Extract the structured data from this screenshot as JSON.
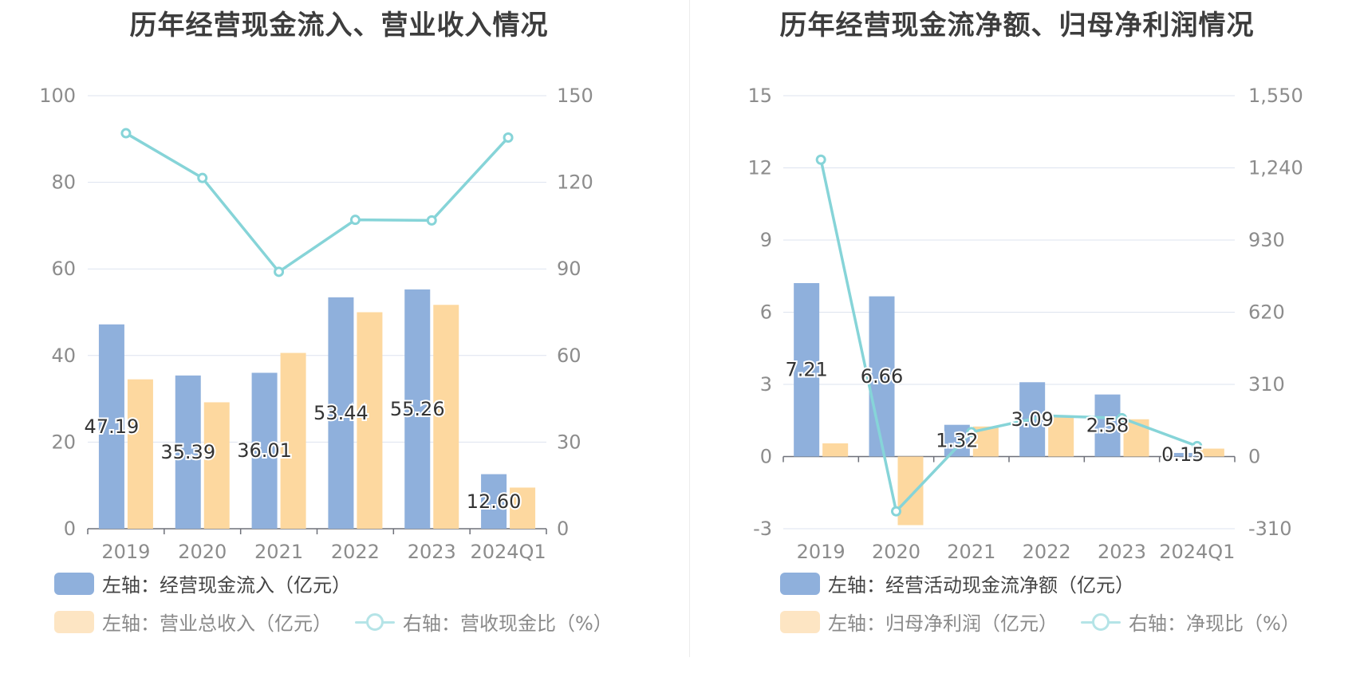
{
  "colors": {
    "bar_primary": "#8fb0dc",
    "bar_secondary": "#fdd89f",
    "line": "#86d4d8",
    "grid": "#dde3ef",
    "axis_text": "#8c8c8c",
    "label_text": "#333333"
  },
  "charts": [
    {
      "id": "left",
      "title": "历年经营现金流入、营业收入情况",
      "legend": [
        {
          "label": "左轴：经营现金流入（亿元）",
          "kind": "bar",
          "color": "#8fb0dc",
          "active": true
        },
        {
          "label": "左轴：营业总收入（亿元）",
          "kind": "bar",
          "color": "#fde5c3",
          "active": false
        },
        {
          "label": "右轴：营收现金比（%）",
          "kind": "line",
          "color": "#b5e4e7",
          "active": false
        }
      ]
    },
    {
      "id": "right",
      "title": "历年经营现金流净额、归母净利润情况",
      "legend": [
        {
          "label": "左轴：经营活动现金流净额（亿元）",
          "kind": "bar",
          "color": "#8fb0dc",
          "active": true
        },
        {
          "label": "左轴：归母净利润（亿元）",
          "kind": "bar",
          "color": "#fde5c3",
          "active": false
        },
        {
          "label": "右轴：净现比（%）",
          "kind": "line",
          "color": "#b5e4e7",
          "active": false
        }
      ]
    }
  ],
  "chart_data": [
    {
      "type": "bar",
      "title": "历年经营现金流入、营业收入情况",
      "categories": [
        "2019",
        "2020",
        "2021",
        "2022",
        "2023",
        "2024Q1"
      ],
      "y_left": {
        "min": 0,
        "max": 100,
        "ticks": [
          "0",
          "20",
          "40",
          "60",
          "80",
          "100"
        ]
      },
      "y_right": {
        "min": 0,
        "max": 150,
        "ticks": [
          "0",
          "30",
          "60",
          "90",
          "120",
          "150"
        ]
      },
      "series": [
        {
          "name": "左轴：经营现金流入（亿元）",
          "axis": "left",
          "kind": "bar",
          "values": [
            47.19,
            35.39,
            36.01,
            53.44,
            55.26,
            12.6
          ],
          "labels": [
            "47.19",
            "35.39",
            "36.01",
            "53.44",
            "55.26",
            "12.60"
          ]
        },
        {
          "name": "左轴：营业总收入（亿元）",
          "axis": "left",
          "kind": "bar",
          "values": [
            34.5,
            29.2,
            40.6,
            50.0,
            51.7,
            9.5
          ]
        },
        {
          "name": "右轴：营收现金比（%）",
          "axis": "right",
          "kind": "line",
          "values": [
            137.0,
            121.5,
            89.0,
            107.0,
            106.8,
            135.5
          ]
        }
      ],
      "grid": true
    },
    {
      "type": "bar",
      "title": "历年经营现金流净额、归母净利润情况",
      "categories": [
        "2019",
        "2020",
        "2021",
        "2022",
        "2023",
        "2024Q1"
      ],
      "y_left": {
        "min": -3,
        "max": 15,
        "ticks": [
          "-3",
          "0",
          "3",
          "6",
          "9",
          "12",
          "15"
        ]
      },
      "y_right": {
        "min": -310,
        "max": 1550,
        "ticks": [
          "-310",
          "0",
          "310",
          "620",
          "930",
          "1,240",
          "1,550"
        ]
      },
      "series": [
        {
          "name": "左轴：经营活动现金流净额（亿元）",
          "axis": "left",
          "kind": "bar",
          "values": [
            7.21,
            6.66,
            1.32,
            3.09,
            2.58,
            0.15
          ],
          "labels": [
            "7.21",
            "6.66",
            "1.32",
            "3.09",
            "2.58",
            "0.15"
          ]
        },
        {
          "name": "左轴：归母净利润（亿元）",
          "axis": "left",
          "kind": "bar",
          "values": [
            0.55,
            -2.85,
            1.25,
            1.7,
            1.55,
            0.33
          ]
        },
        {
          "name": "右轴：净现比（%）",
          "axis": "right",
          "kind": "line",
          "values": [
            1275,
            -235,
            105,
            175,
            165,
            45
          ]
        }
      ],
      "grid": true
    }
  ]
}
